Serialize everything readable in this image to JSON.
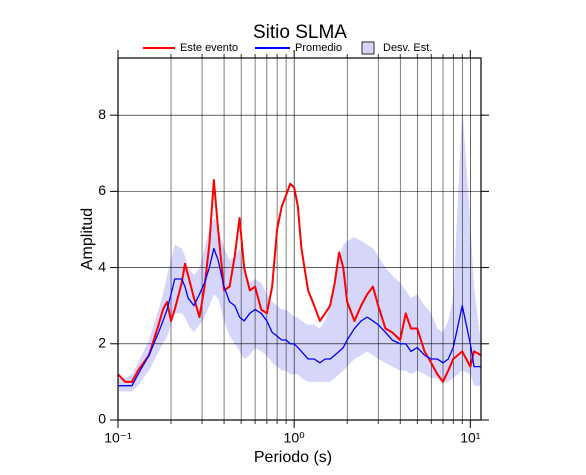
{
  "chart_data": {
    "type": "line",
    "title": "Sitio SLMA",
    "x_label": "Periodo (s)",
    "y_label": "Amplitud",
    "x_scale": "log",
    "grid": true,
    "xlim": [
      0.1,
      11.5
    ],
    "ylim": [
      0,
      9.5
    ],
    "xticks": [
      {
        "value": 0.1,
        "label": "10⁻¹"
      },
      {
        "value": 1,
        "label": "10⁰"
      },
      {
        "value": 10,
        "label": "10¹"
      }
    ],
    "yticks": [
      0,
      2,
      4,
      6,
      8
    ],
    "x": [
      0.1,
      0.11,
      0.12,
      0.13,
      0.15,
      0.17,
      0.18,
      0.19,
      0.2,
      0.21,
      0.23,
      0.24,
      0.25,
      0.27,
      0.29,
      0.31,
      0.33,
      0.35,
      0.37,
      0.4,
      0.43,
      0.46,
      0.49,
      0.52,
      0.56,
      0.6,
      0.65,
      0.7,
      0.75,
      0.8,
      0.85,
      0.9,
      0.95,
      1.0,
      1.05,
      1.1,
      1.2,
      1.3,
      1.4,
      1.5,
      1.6,
      1.7,
      1.8,
      1.9,
      2.0,
      2.2,
      2.4,
      2.6,
      2.8,
      3.0,
      3.3,
      3.6,
      4.0,
      4.3,
      4.6,
      5.0,
      5.5,
      6.0,
      6.5,
      7.0,
      7.5,
      8.0,
      9.0,
      10,
      10.5,
      11.5
    ],
    "band": {
      "name": "Desv. Est.",
      "color": "#d6d6fa",
      "upper": [
        1.1,
        1.1,
        1.2,
        1.5,
        2.1,
        2.9,
        3.3,
        3.8,
        4.2,
        4.6,
        4.5,
        4.3,
        4.0,
        3.8,
        4.0,
        4.5,
        5.0,
        5.3,
        5.1,
        4.5,
        4.2,
        4.3,
        4.5,
        3.9,
        3.6,
        3.7,
        3.6,
        3.3,
        3.1,
        3.0,
        2.9,
        2.9,
        2.8,
        2.7,
        2.7,
        2.6,
        2.5,
        2.5,
        2.4,
        2.6,
        3.0,
        3.6,
        4.2,
        4.6,
        4.7,
        4.8,
        4.7,
        4.6,
        4.5,
        4.3,
        4.0,
        3.8,
        3.6,
        3.4,
        3.2,
        3.3,
        3.0,
        2.8,
        2.4,
        2.3,
        2.6,
        3.2,
        8.2,
        5.2,
        3.5,
        2.0
      ],
      "lower": [
        0.75,
        0.75,
        0.75,
        0.9,
        1.3,
        1.8,
        2.0,
        2.2,
        2.5,
        2.8,
        2.8,
        2.7,
        2.5,
        2.3,
        2.5,
        2.7,
        3.0,
        3.3,
        3.2,
        2.6,
        2.2,
        2.0,
        1.8,
        1.6,
        1.7,
        1.9,
        1.8,
        1.7,
        1.5,
        1.4,
        1.3,
        1.3,
        1.2,
        1.2,
        1.2,
        1.1,
        1.0,
        1.0,
        1.0,
        1.0,
        1.0,
        1.1,
        1.2,
        1.3,
        1.4,
        1.6,
        1.7,
        1.8,
        1.7,
        1.6,
        1.5,
        1.4,
        1.3,
        1.3,
        1.2,
        1.3,
        1.2,
        1.1,
        1.1,
        1.0,
        1.0,
        1.1,
        1.3,
        1.2,
        0.9,
        0.9
      ]
    },
    "series": [
      {
        "name": "Este evento",
        "color": "#ff0000",
        "values": [
          1.2,
          1.0,
          1.0,
          1.3,
          1.7,
          2.5,
          2.9,
          3.1,
          2.6,
          2.9,
          3.6,
          4.1,
          3.8,
          3.2,
          2.7,
          3.5,
          4.6,
          6.3,
          5.0,
          3.4,
          3.5,
          4.3,
          5.3,
          4.0,
          3.4,
          3.5,
          2.9,
          2.8,
          3.5,
          5.0,
          5.6,
          5.9,
          6.2,
          6.1,
          5.6,
          4.5,
          3.4,
          3.0,
          2.6,
          2.8,
          3.0,
          3.6,
          4.4,
          4.0,
          3.1,
          2.6,
          3.0,
          3.3,
          3.5,
          3.0,
          2.4,
          2.3,
          2.1,
          2.8,
          2.4,
          2.4,
          1.8,
          1.5,
          1.2,
          1.0,
          1.3,
          1.6,
          1.8,
          1.4,
          1.8,
          1.7
        ]
      },
      {
        "name": "Promedio",
        "color": "#0000ff",
        "values": [
          0.9,
          0.9,
          0.9,
          1.2,
          1.7,
          2.3,
          2.6,
          2.9,
          3.3,
          3.7,
          3.7,
          3.5,
          3.2,
          3.0,
          3.3,
          3.6,
          4.0,
          4.5,
          4.2,
          3.5,
          3.1,
          3.0,
          2.7,
          2.6,
          2.8,
          2.9,
          2.8,
          2.6,
          2.3,
          2.2,
          2.1,
          2.1,
          2.0,
          2.0,
          1.9,
          1.8,
          1.6,
          1.6,
          1.5,
          1.6,
          1.6,
          1.7,
          1.8,
          1.9,
          2.1,
          2.4,
          2.6,
          2.7,
          2.6,
          2.5,
          2.3,
          2.1,
          2.0,
          2.0,
          1.8,
          1.9,
          1.7,
          1.6,
          1.6,
          1.5,
          1.6,
          1.9,
          3.0,
          2.0,
          1.4,
          1.4
        ]
      }
    ]
  }
}
